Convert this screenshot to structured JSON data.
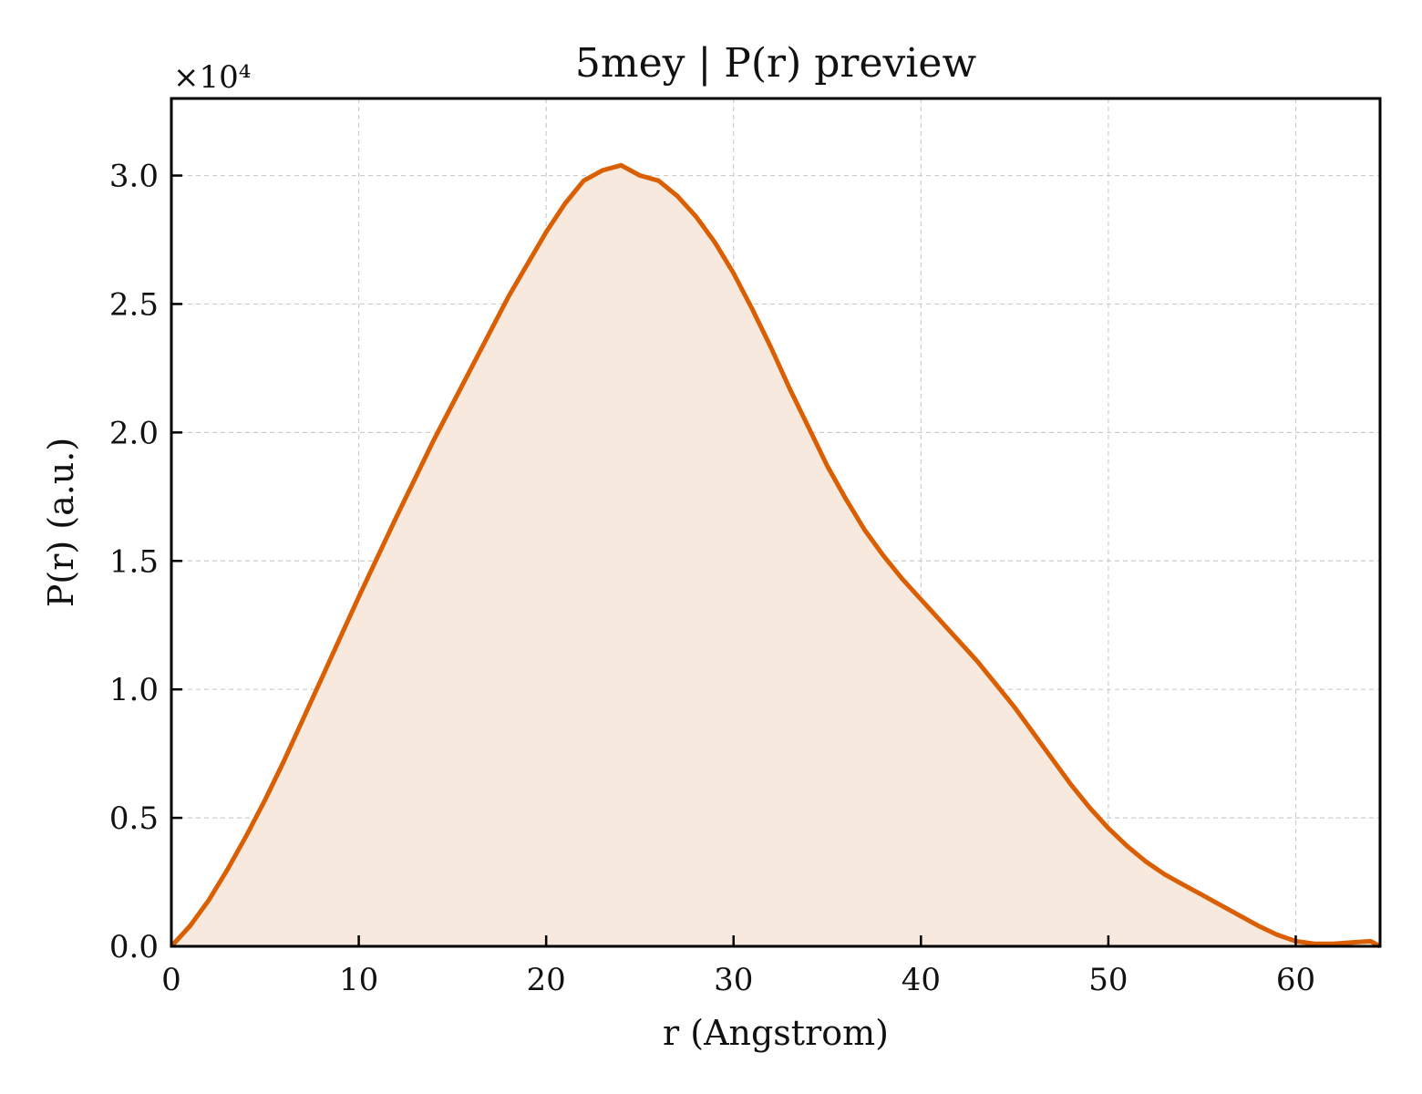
{
  "chart_data": {
    "type": "area",
    "title": "5mey | P(r) preview",
    "xlabel": "r (Angstrom)",
    "ylabel": "P(r) (a.u.)",
    "y_multiplier": "×10⁴",
    "xlim": [
      0,
      64.5
    ],
    "ylim": [
      0,
      3.3
    ],
    "y_scale_factor": 10000,
    "grid": true,
    "x_ticks": [
      0,
      10,
      20,
      30,
      40,
      50,
      60
    ],
    "x_tick_labels": [
      "0",
      "10",
      "20",
      "30",
      "40",
      "50",
      "60"
    ],
    "y_ticks": [
      0,
      0.5,
      1.0,
      1.5,
      2.0,
      2.5,
      3.0
    ],
    "y_tick_labels": [
      "0.0",
      "0.5",
      "1.0",
      "1.5",
      "2.0",
      "2.5",
      "3.0"
    ],
    "series": [
      {
        "color": "#d95f02",
        "fill_color": "#f8e9de",
        "x": [
          0,
          1,
          2,
          3,
          4,
          5,
          6,
          7,
          8,
          9,
          10,
          12,
          14,
          16,
          18,
          20,
          21,
          22,
          23,
          24,
          25,
          26,
          27,
          28,
          29,
          30,
          31,
          32,
          33,
          34,
          35,
          36,
          37,
          38,
          39,
          40,
          41,
          42,
          43,
          44,
          45,
          46,
          47,
          48,
          49,
          50,
          51,
          52,
          53,
          54,
          55,
          56,
          57,
          58,
          59,
          60,
          61,
          62,
          63,
          64,
          64.5
        ],
        "y": [
          0.0,
          0.08,
          0.18,
          0.3,
          0.43,
          0.57,
          0.72,
          0.88,
          1.04,
          1.2,
          1.36,
          1.67,
          1.97,
          2.25,
          2.53,
          2.78,
          2.89,
          2.98,
          3.02,
          3.04,
          3.0,
          2.98,
          2.92,
          2.84,
          2.74,
          2.62,
          2.48,
          2.33,
          2.17,
          2.02,
          1.87,
          1.74,
          1.62,
          1.52,
          1.43,
          1.35,
          1.27,
          1.19,
          1.11,
          1.02,
          0.93,
          0.83,
          0.73,
          0.63,
          0.54,
          0.46,
          0.39,
          0.33,
          0.28,
          0.24,
          0.2,
          0.16,
          0.12,
          0.08,
          0.045,
          0.02,
          0.01,
          0.01,
          0.015,
          0.02,
          0.0
        ]
      }
    ]
  }
}
